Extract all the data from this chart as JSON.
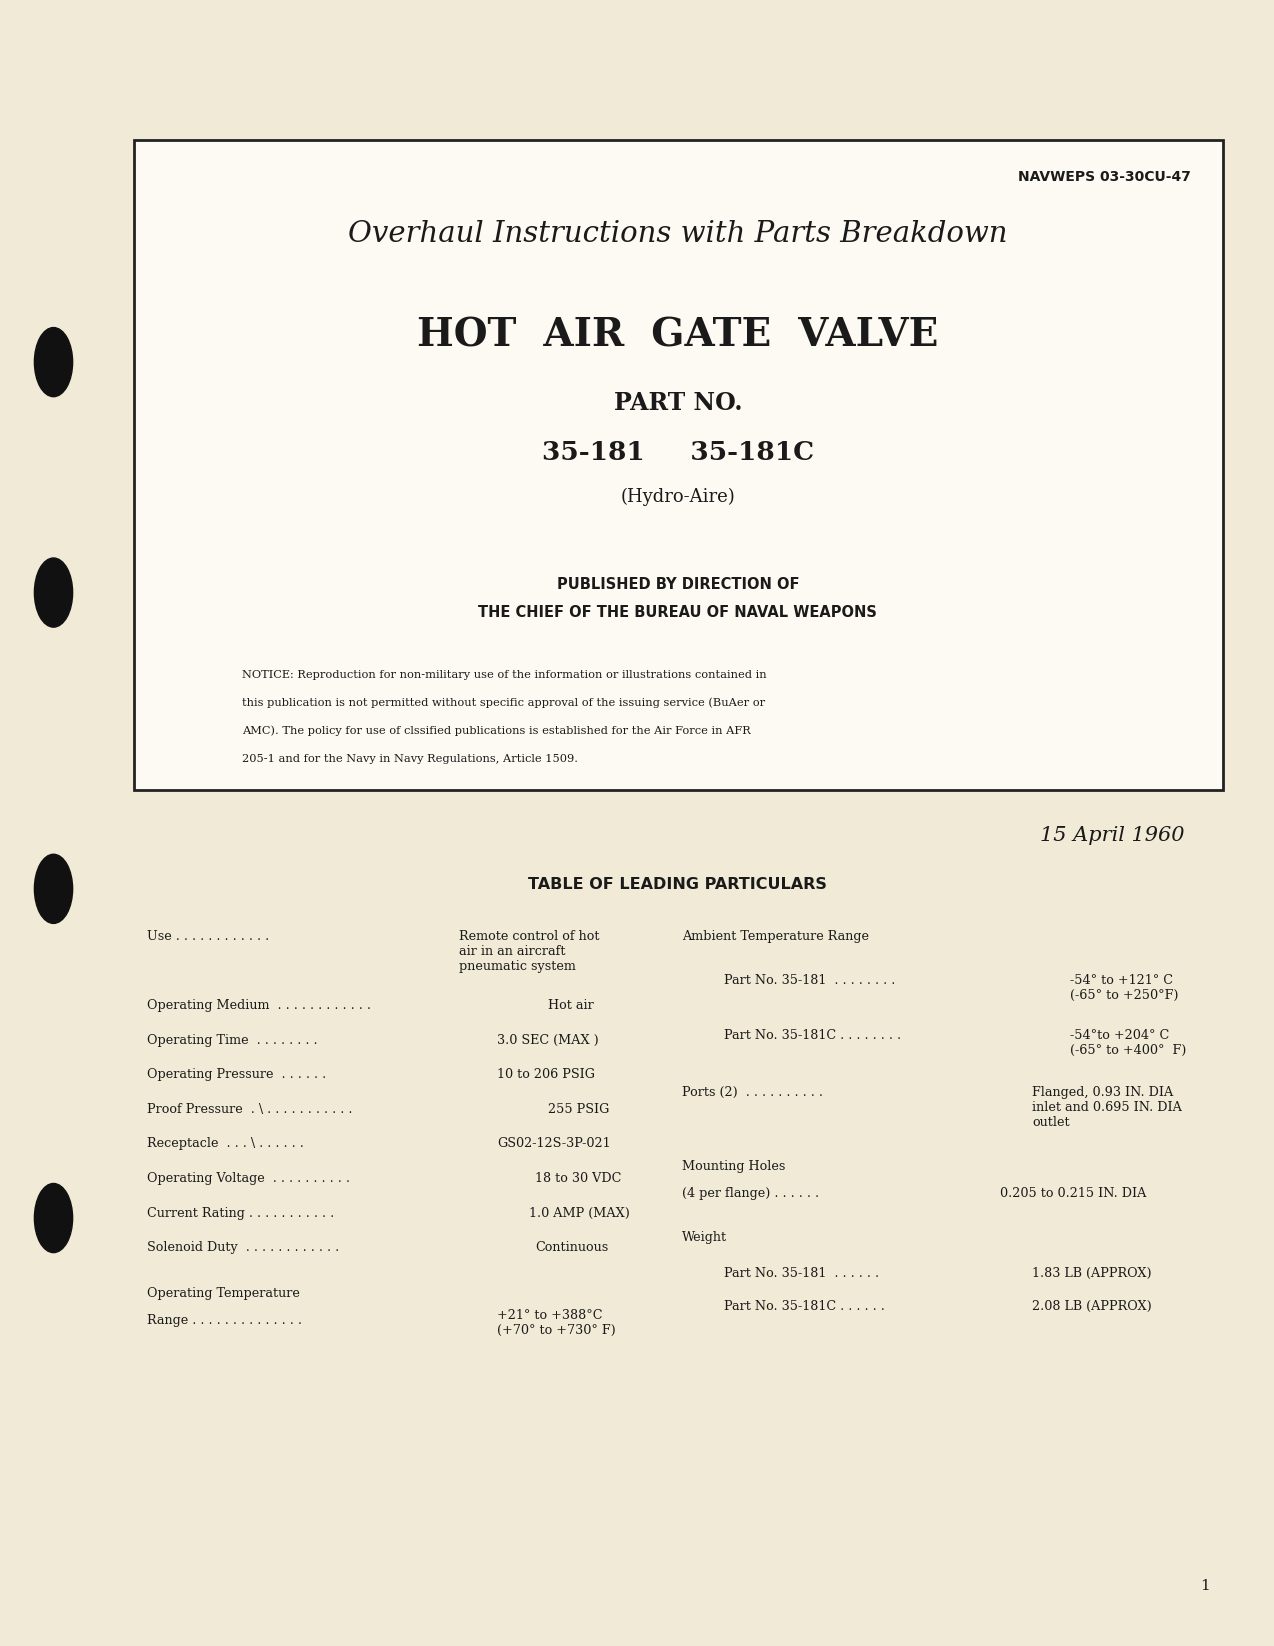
{
  "bg_color": "#f0ead6",
  "box_bg": "#fdfaf3",
  "text_color": "#1a1a1a",
  "navweps": "NAVWEPS 03-30CU-47",
  "title1": "Overhaul Instructions with Parts Breakdown",
  "title2": "HOT  AIR  GATE  VALVE",
  "part_no_label": "PART NO.",
  "part_nos": "35-181     35-181C",
  "hydro_aire": "(Hydro-Aire)",
  "published_line1": "PUBLISHED BY DIRECTION OF",
  "published_line2": "THE CHIEF OF THE BUREAU OF NAVAL WEAPONS",
  "notice_text": "NOTICE: Reproduction for non-military use of the information or illustrations contained in\nthis publication is not permitted without specific approval of the issuing service (BuAer or\nAMC). The policy for use of clssified publications is established for the Air Force in AFR\n205-1 and for the Navy in Navy Regulations, Article 1509.",
  "date": "15 April 1960",
  "table_title": "TABLE OF LEADING PARTICULARS",
  "page_num": "1"
}
